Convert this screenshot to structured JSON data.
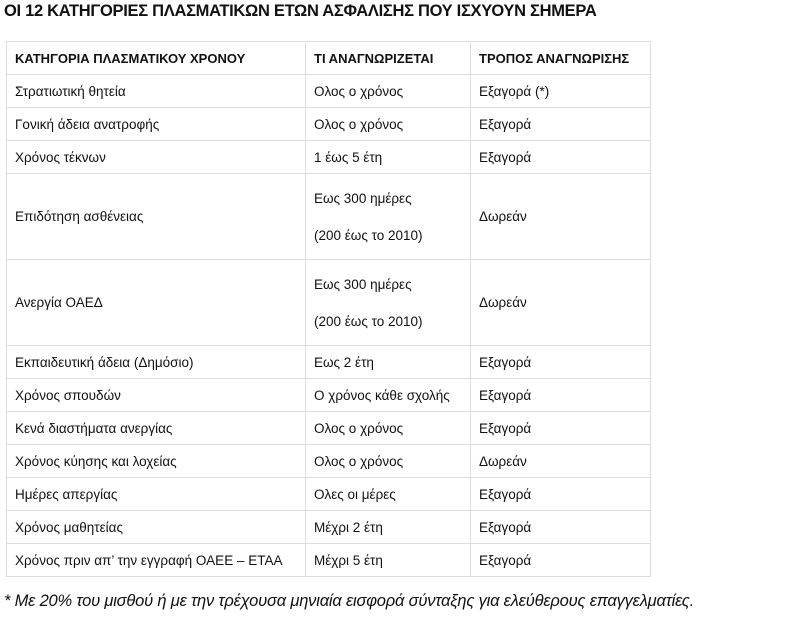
{
  "title": "ΟΙ 12 ΚΑΤΗΓΟΡΙΕΣ ΠΛΑΣΜΑΤΙΚΩΝ ΕΤΩΝ ΑΣΦΑΛΙΣΗΣ ΠΟΥ ΙΣΧΥΟΥΝ ΣΗΜΕΡΑ",
  "headers": [
    "ΚΑΤΗΓΟΡΙΑ ΠΛΑΣΜΑΤΙΚΟΥ ΧΡΟΝΟΥ",
    "ΤΙ ΑΝΑΓΝΩΡΙΖΕΤΑΙ",
    "ΤΡΟΠΟΣ ΑΝΑΓΝΩΡΙΣΗΣ"
  ],
  "rows": [
    {
      "category": "Στρατιωτική θητεία",
      "recognized": [
        "Ολος ο χρόνος"
      ],
      "method": "Εξαγορά (*)"
    },
    {
      "category": "Γονική άδεια ανατροφής",
      "recognized": [
        "Ολος ο χρόνος"
      ],
      "method": "Εξαγορά"
    },
    {
      "category": "Χρόνος τέκνων",
      "recognized": [
        "1 έως 5 έτη"
      ],
      "method": "Εξαγορά"
    },
    {
      "category": "Επιδότηση ασθένειας",
      "recognized": [
        "Εως 300 ημέρες",
        "(200 έως το 2010)"
      ],
      "method": "Δωρεάν"
    },
    {
      "category": "Ανεργία ΟΑΕΔ",
      "recognized": [
        "Εως 300 ημέρες",
        "(200 έως το 2010)"
      ],
      "method": "Δωρεάν"
    },
    {
      "category": "Εκπαιδευτική άδεια (Δημόσιο)",
      "recognized": [
        "Εως 2 έτη"
      ],
      "method": "Εξαγορά"
    },
    {
      "category": "Χρόνος σπουδών",
      "recognized": [
        "Ο χρόνος κάθε σχολής"
      ],
      "method": "Εξαγορά"
    },
    {
      "category": "Κενά διαστήματα ανεργίας",
      "recognized": [
        "Ολος ο χρόνος"
      ],
      "method": "Εξαγορά"
    },
    {
      "category": "Χρόνος κύησης και λοχείας",
      "recognized": [
        "Ολος ο χρόνος"
      ],
      "method": "Δωρεάν"
    },
    {
      "category": "Ημέρες απεργίας",
      "recognized": [
        "Ολες οι μέρες"
      ],
      "method": "Εξαγορά"
    },
    {
      "category": "Χρόνος μαθητείας",
      "recognized": [
        "Μέχρι 2 έτη"
      ],
      "method": "Εξαγορά"
    },
    {
      "category": "Χρόνος πριν απ’ την εγγραφή ΟΑΕΕ – ΕΤΑΑ",
      "recognized": [
        "Μέχρι 5 έτη"
      ],
      "method": "Εξαγορά"
    }
  ],
  "footnote": "* Με 20% του μισθού ή με την τρέχουσα μηνιαία εισφορά σύνταξης για ελεύθερους επαγγελματίες."
}
